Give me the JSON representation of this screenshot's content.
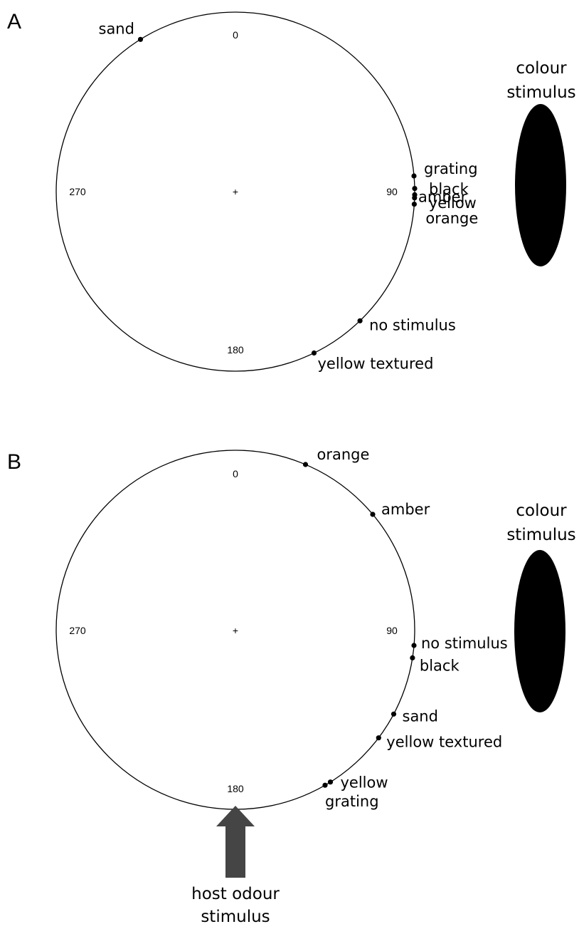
{
  "chart_data": [
    {
      "type": "scatter",
      "panel": "A",
      "angle_labels": [
        "0",
        "90",
        "180",
        "270"
      ],
      "center_marker": "+",
      "points": [
        {
          "label": "sand",
          "angle": 328
        },
        {
          "label": "grating",
          "angle": 85
        },
        {
          "label": "black",
          "angle": 89
        },
        {
          "label": "amber",
          "angle": 91
        },
        {
          "label": "yellow",
          "angle": 92
        },
        {
          "label": "orange",
          "angle": 94
        },
        {
          "label": "no stimulus",
          "angle": 136
        },
        {
          "label": "yellow textured",
          "angle": 154
        }
      ],
      "stimulus": {
        "label_lines": [
          "colour",
          "stimulus"
        ]
      }
    },
    {
      "type": "scatter",
      "panel": "B",
      "angle_labels": [
        "0",
        "90",
        "180",
        "270"
      ],
      "center_marker": "+",
      "points": [
        {
          "label": "orange",
          "angle": 23
        },
        {
          "label": "amber",
          "angle": 50
        },
        {
          "label": "no stimulus",
          "angle": 95
        },
        {
          "label": "black",
          "angle": 99
        },
        {
          "label": "sand",
          "angle": 118
        },
        {
          "label": "yellow textured",
          "angle": 127
        },
        {
          "label": "yellow",
          "angle": 148
        },
        {
          "label": "grating",
          "angle": 150
        }
      ],
      "stimulus": {
        "label_lines": [
          "colour",
          "stimulus"
        ]
      },
      "odour_stimulus": {
        "label_lines": [
          "host odour",
          "stimulus"
        ]
      }
    }
  ]
}
